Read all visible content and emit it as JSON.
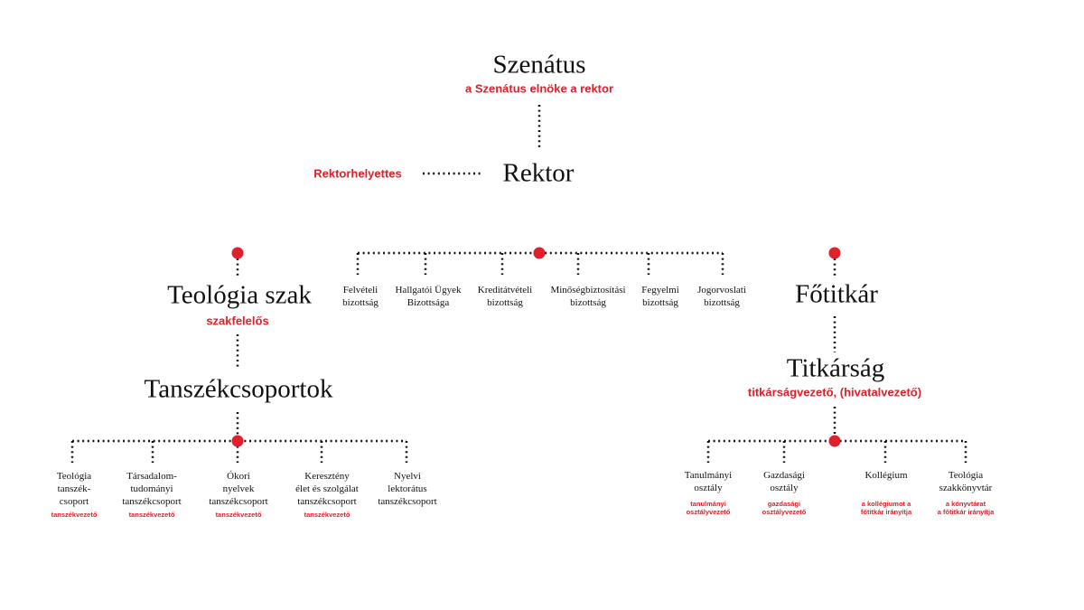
{
  "colors": {
    "accent": "#e0202a",
    "line": "#111111"
  },
  "senate": {
    "title": "Szenátus",
    "subtitle": "a Szenátus elnöke a rektor"
  },
  "rector": {
    "title": "Rektor",
    "deputy": "Rektorhelyettes"
  },
  "committees": [
    {
      "l1": "Felvételi",
      "l2": "bizottság"
    },
    {
      "l1": "Hallgatói Ügyek",
      "l2": "Bizottsága"
    },
    {
      "l1": "Kreditátvételi",
      "l2": "bizottság"
    },
    {
      "l1": "Minőségbiztosítási",
      "l2": "bizottság"
    },
    {
      "l1": "Fegyelmi",
      "l2": "bizottság"
    },
    {
      "l1": "Jogorvoslati",
      "l2": "bizottság"
    }
  ],
  "program": {
    "title": "Teológia szak",
    "subtitle": "szakfelelős"
  },
  "departments_title": "Tanszékcsoportok",
  "departments": [
    {
      "lines": [
        "Teológia",
        "tanszék-",
        "csoport"
      ],
      "head": "tanszékvezető"
    },
    {
      "lines": [
        "Társadalom-",
        "tudományi",
        "tanszékcsoport"
      ],
      "head": "tanszékvezető"
    },
    {
      "lines": [
        "Ókori",
        "nyelvek",
        "tanszékcsoport"
      ],
      "head": "tanszékvezető"
    },
    {
      "lines": [
        "Keresztény",
        "élet és szolgálat",
        "tanszékcsoport"
      ],
      "head": "tanszékvezető"
    },
    {
      "lines": [
        "Nyelvi",
        "lektorátus",
        "tanszékcsoport"
      ],
      "head": ""
    }
  ],
  "secretary_general": {
    "title": "Főtitkár"
  },
  "secretariat": {
    "title": "Titkárság",
    "subtitle": "titkárságvezető, (hivatalvezető)"
  },
  "units": [
    {
      "lines": [
        "Tanulmányi",
        "osztály"
      ],
      "head": [
        "tanulmányi",
        "osztályvezető"
      ]
    },
    {
      "lines": [
        "Gazdasági",
        "osztály"
      ],
      "head": [
        "gazdasági",
        "osztályvezető"
      ]
    },
    {
      "lines": [
        "Kollégium",
        ""
      ],
      "head": [
        "a kollégiumot a",
        "főtitkár irányítja"
      ]
    },
    {
      "lines": [
        "Teológia",
        "szakkönyvtár"
      ],
      "head": [
        "a könyvtárat",
        "a főtitkár irányítja"
      ]
    }
  ]
}
